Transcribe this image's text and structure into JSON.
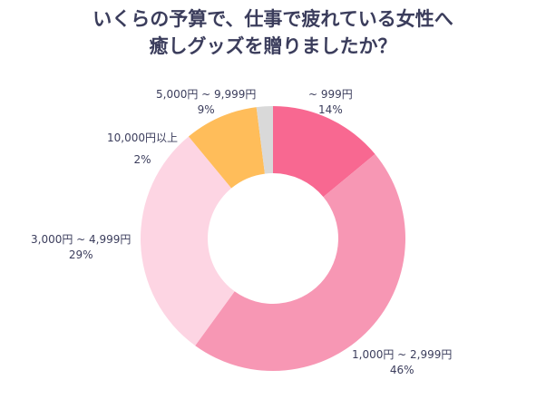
{
  "chart_data": {
    "type": "pie",
    "donut": true,
    "title_lines": [
      "いくらの予算で、仕事で疲れている女性へ",
      "癒しグッズを贈りましたか？"
    ],
    "categories": [
      "~ 999円",
      "1,000円 ~ 2,999円",
      "3,000円 ~ 4,999円",
      "5,000円 ~ 9,999円",
      "10,000円以上"
    ],
    "values": [
      14,
      46,
      29,
      9,
      2
    ],
    "value_labels": [
      "14%",
      "46%",
      "29%",
      "9%",
      "2%"
    ],
    "colors": [
      "#f86891",
      "#f797b4",
      "#fdd5e3",
      "#ffbd5a",
      "#d9d9d9"
    ]
  }
}
